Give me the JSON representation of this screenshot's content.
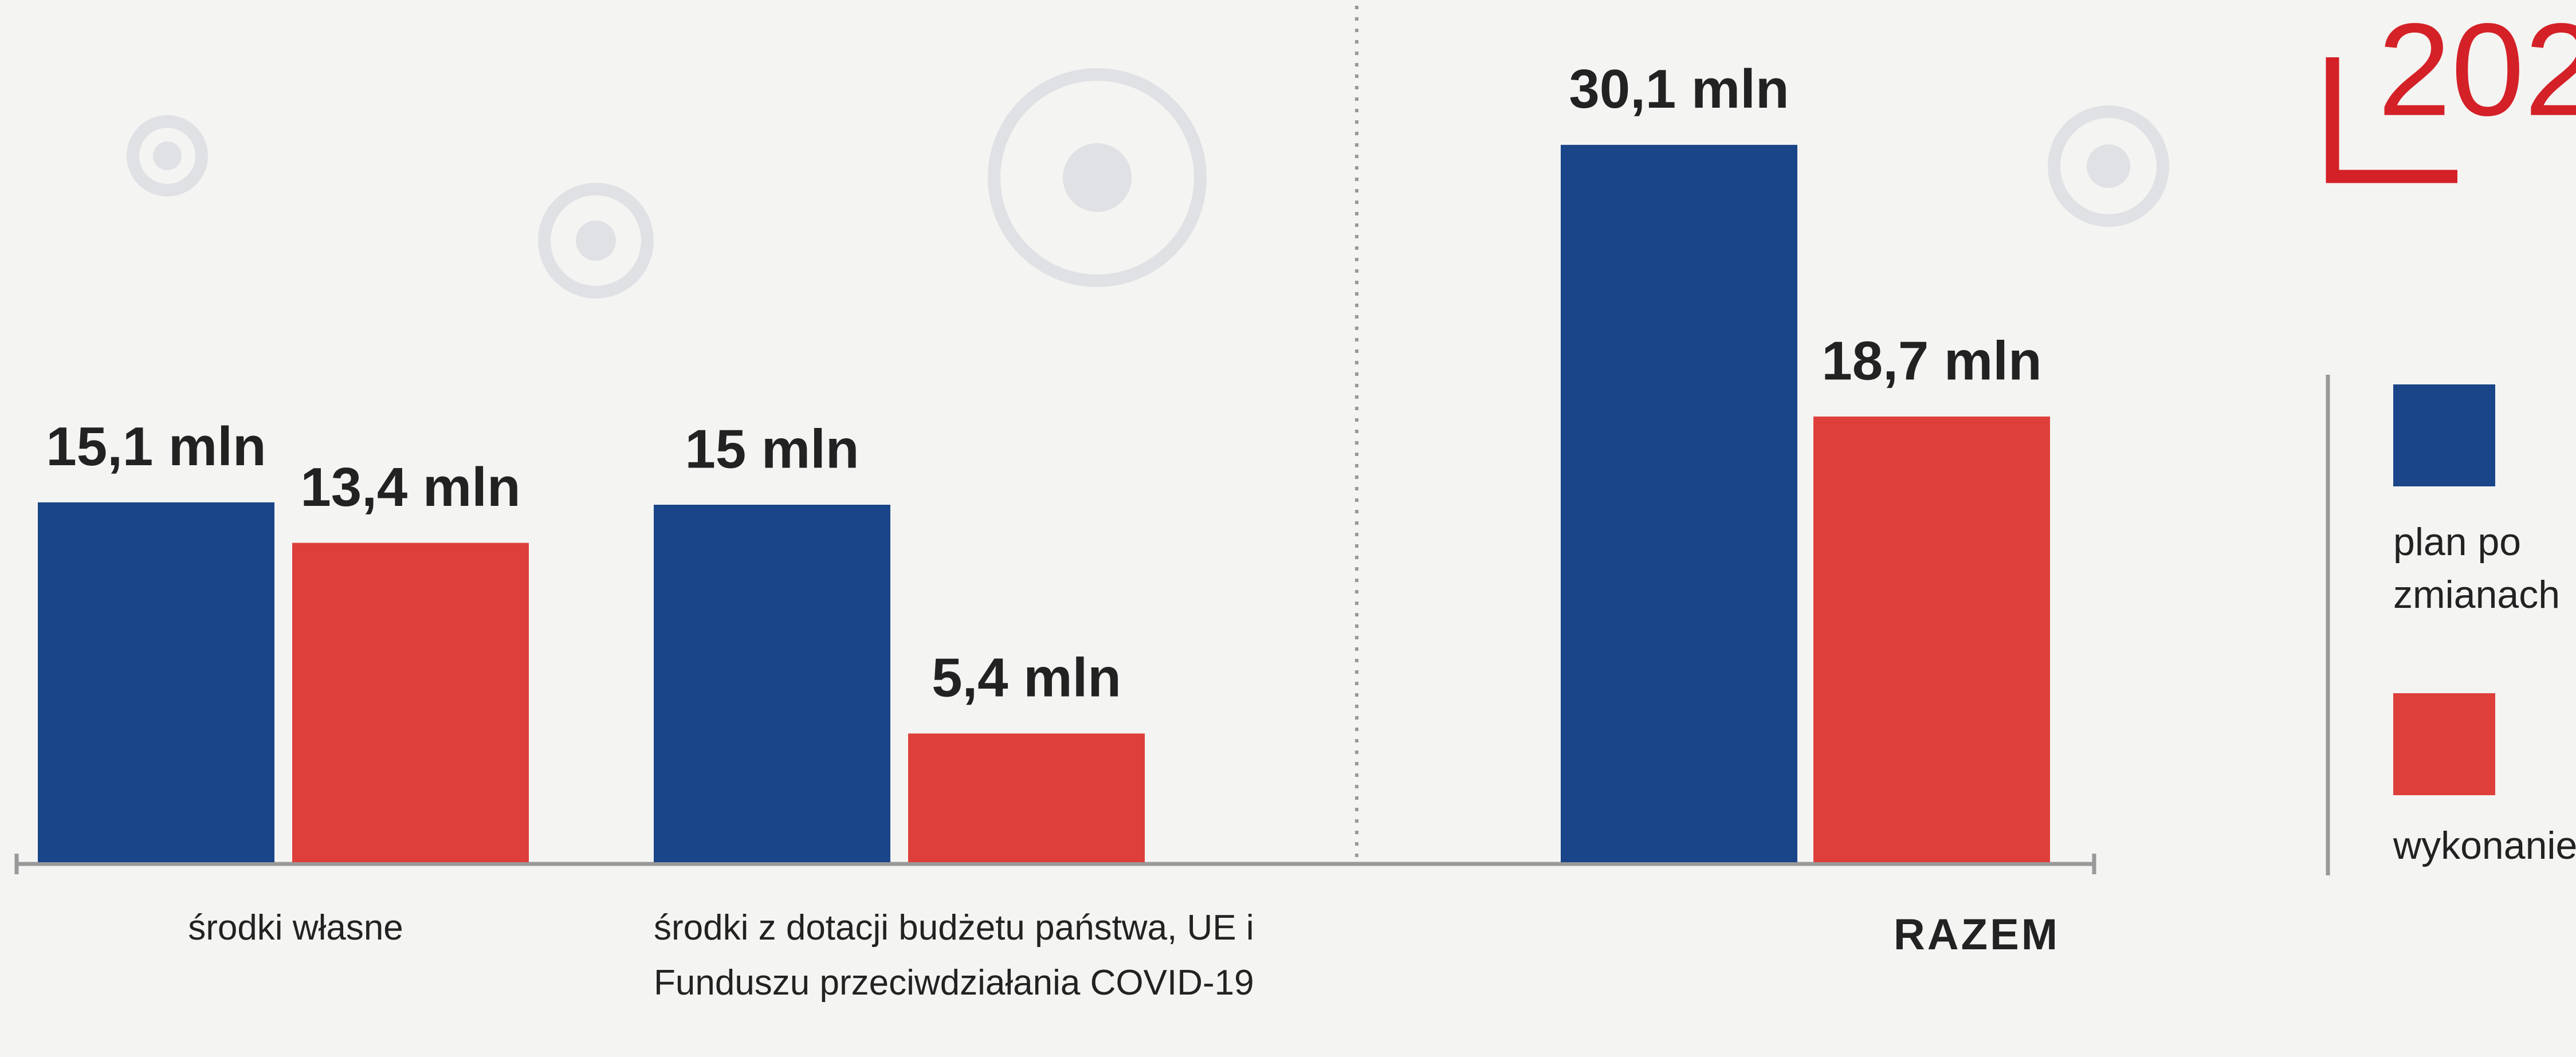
{
  "chart_data": {
    "type": "bar",
    "title": "202",
    "categories": [
      "środki własne",
      "środki z dotacji budżetu państwa, UE i Funduszu przeciwdziałania COVID-19",
      "RAZEM"
    ],
    "series": [
      {
        "name": "plan po zmianach",
        "color": "#1a4589",
        "values": [
          15.1,
          15,
          30.1
        ],
        "value_labels": [
          "15,1 mln",
          "15 mln",
          "30,1 mln"
        ]
      },
      {
        "name": "wykonanie",
        "color": "#df3f3a",
        "values": [
          13.4,
          5.4,
          18.7
        ],
        "value_labels": [
          "13,4 mln",
          "5,4 mln",
          "18,7 mln"
        ]
      }
    ]
  }
}
